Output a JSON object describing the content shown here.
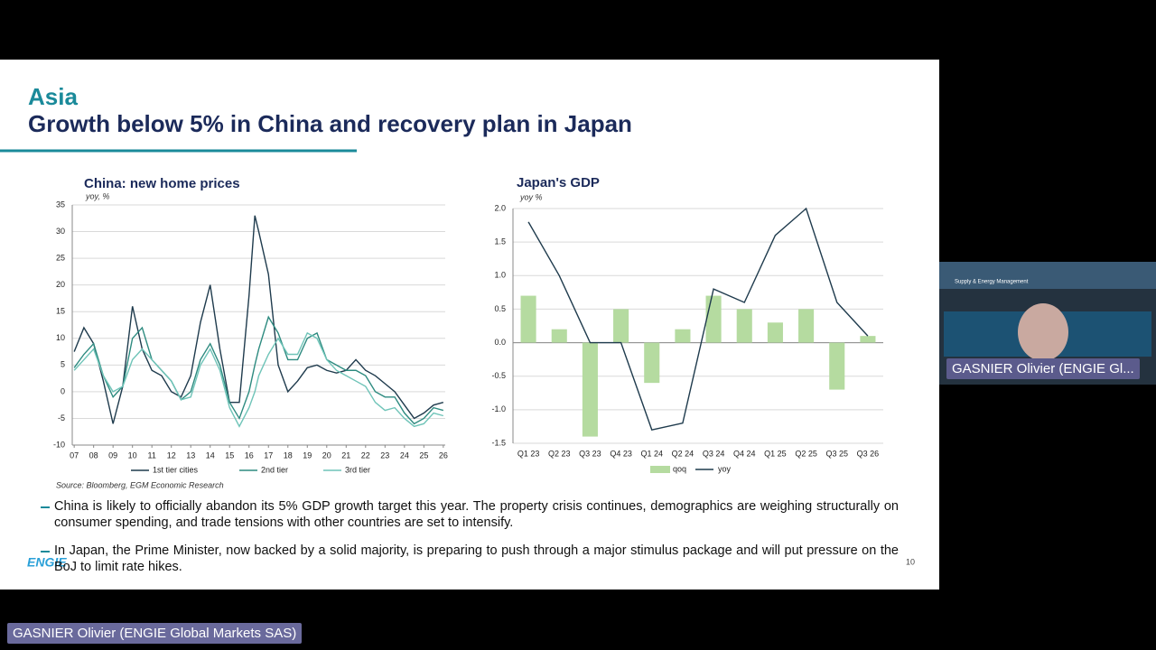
{
  "slide": {
    "heading": "Asia",
    "title": "Growth below 5% in China and recovery plan in Japan",
    "source": "Source: Bloomberg, EGM Economic Research",
    "bullets": [
      "China is likely to officially abandon its 5% GDP growth target this year. The property crisis continues, demographics are weighing structurally on consumer spending, and trade tensions with other countries are set to intensify.",
      "In Japan, the Prime Minister, now backed by a solid majority, is preparing to push through a major stimulus package and will put pressure on the BoJ to limit rate hikes."
    ],
    "page_number": "10",
    "logo": "ENGIE"
  },
  "meeting": {
    "tile_caption": "Supply & Energy Management",
    "tile_name": "GASNIER Olivier (ENGIE Gl...",
    "speaker_name": "GASNIER Olivier (ENGIE Global Markets SAS)"
  },
  "chart_data": [
    {
      "type": "line",
      "title": "China: new home prices",
      "subtitle": "yoy, %",
      "x": [
        7,
        7.5,
        8,
        8.5,
        9,
        9.5,
        10,
        10.5,
        11,
        11.5,
        12,
        12.5,
        13,
        13.5,
        14,
        14.5,
        15,
        15.5,
        16,
        16.3,
        16.5,
        17,
        17.5,
        18,
        18.5,
        19,
        19.5,
        20,
        20.5,
        21,
        21.5,
        22,
        22.5,
        23,
        23.5,
        24,
        24.5,
        25,
        25.5,
        26
      ],
      "series": [
        {
          "name": "1st tier cities",
          "color": "#1f3b4d",
          "values": [
            7.5,
            12,
            9,
            2,
            -6,
            1,
            16,
            8,
            4,
            3,
            0,
            -1,
            3,
            13,
            20,
            8,
            -2,
            -2,
            18,
            33,
            30,
            22,
            5,
            0,
            2,
            4.5,
            5,
            4,
            3.5,
            4,
            6,
            4,
            3,
            1.5,
            0,
            -2.5,
            -5,
            -4,
            -2.5,
            -2
          ]
        },
        {
          "name": "2nd tier",
          "color": "#2e8b80",
          "values": [
            4.5,
            7,
            9,
            3,
            -1,
            1,
            10,
            12,
            6,
            4,
            2,
            -1.5,
            0,
            6,
            9,
            5,
            -2,
            -5,
            0,
            5,
            8,
            14,
            11,
            6,
            6,
            10,
            11,
            6,
            5,
            4,
            4,
            3,
            0,
            -1,
            -1,
            -4,
            -6,
            -5,
            -3,
            -3.5
          ]
        },
        {
          "name": "3rd tier",
          "color": "#6fc4b8",
          "values": [
            4,
            6,
            8,
            3,
            0,
            1,
            6,
            8,
            6,
            4,
            2,
            -1.5,
            -1,
            5,
            8,
            4,
            -3,
            -6.5,
            -3,
            0,
            3,
            7,
            10,
            7,
            7,
            11,
            10,
            6,
            4,
            3,
            2,
            1,
            -2,
            -3.5,
            -3,
            -5,
            -6.5,
            -6,
            -4,
            -4.5
          ]
        }
      ],
      "xlim": [
        6.9,
        26.1
      ],
      "xticks": [
        {
          "value": 7,
          "label": "07"
        },
        {
          "value": 8,
          "label": "08"
        },
        {
          "value": 9,
          "label": "09"
        },
        10,
        11,
        12,
        13,
        14,
        15,
        16,
        17,
        18,
        19,
        20,
        21,
        22,
        23,
        24,
        25,
        26
      ],
      "ylim": [
        -10,
        35
      ],
      "yticks": [
        -10,
        -5,
        0,
        5,
        10,
        15,
        20,
        25,
        30,
        35
      ],
      "grid": true
    },
    {
      "type": "combo",
      "title": "Japan's GDP",
      "subtitle": "yoy %",
      "categories": [
        "Q1 23",
        "Q2 23",
        "Q3 23",
        "Q4 23",
        "Q1 24",
        "Q2 24",
        "Q3 24",
        "Q4 24",
        "Q1 25",
        "Q2 25",
        "Q3 25",
        "Q3 26"
      ],
      "series": [
        {
          "name": "qoq",
          "type": "bar",
          "color": "#b5dba0",
          "values": [
            0.7,
            0.2,
            -1.4,
            0.5,
            -0.6,
            0.2,
            0.7,
            0.5,
            0.3,
            0.5,
            -0.7,
            0.1
          ]
        },
        {
          "name": "yoy",
          "type": "line",
          "color": "#1f3b4d",
          "values": [
            1.8,
            1.0,
            0.0,
            0.0,
            -1.3,
            -1.2,
            0.8,
            0.6,
            1.6,
            2.0,
            0.6,
            0.1
          ]
        }
      ],
      "ylim": [
        -1.5,
        2.0
      ],
      "yticks": [
        -1.5,
        {
          "value": -1,
          "label": "-1.0"
        },
        -0.5,
        {
          "value": 0,
          "label": "0.0"
        },
        0.5,
        {
          "value": 1,
          "label": "1.0"
        },
        1.5,
        {
          "value": 2,
          "label": "2.0"
        }
      ],
      "grid": true
    }
  ]
}
